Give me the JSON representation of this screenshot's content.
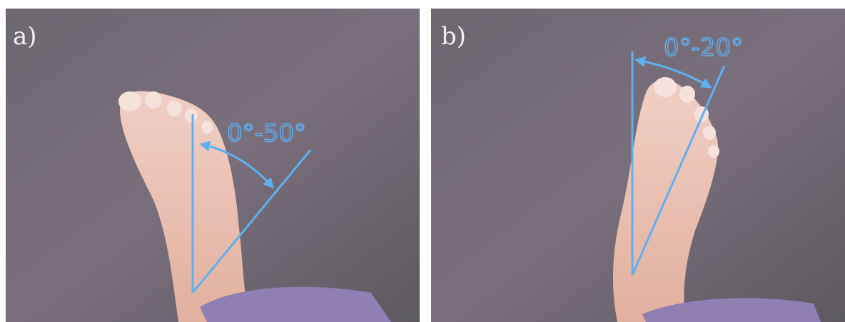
{
  "panels": [
    {
      "label": "a)",
      "angle_label": "0°-50°"
    },
    {
      "label": "b)",
      "angle_label": "0°-20°"
    }
  ]
}
